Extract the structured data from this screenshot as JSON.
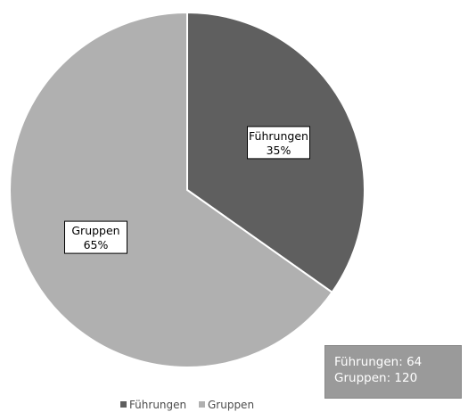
{
  "chart_data": {
    "type": "pie",
    "title": "",
    "slices": [
      {
        "name": "Führungen",
        "value": 64,
        "percent_label": "35%",
        "color": "#5f5f5f"
      },
      {
        "name": "Gruppen",
        "value": 120,
        "percent_label": "65%",
        "color": "#b0b0b0"
      }
    ],
    "start_angle_deg": 0,
    "direction": "clockwise",
    "slice_border_color": "#ffffff",
    "legend_position": "bottom",
    "legend": [
      "Führungen",
      "Gruppen"
    ],
    "data_labels": [
      "Führungen\n35%",
      "Gruppen\n65%"
    ]
  },
  "info_box": {
    "line1": "Führungen: 64",
    "line2": "Gruppen: 120"
  }
}
